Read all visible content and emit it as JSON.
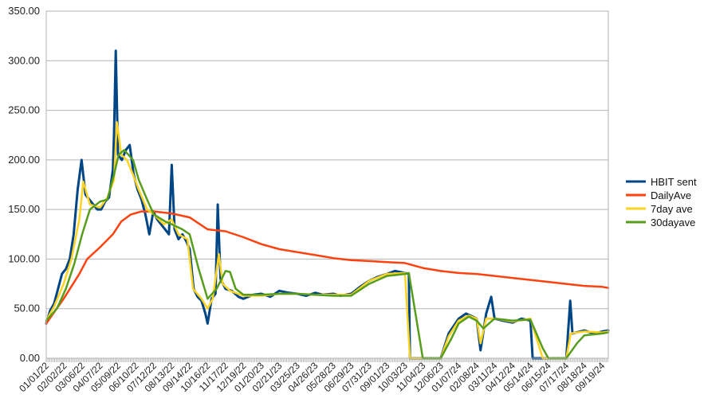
{
  "chart_data": {
    "type": "line",
    "title": "",
    "xlabel": "",
    "ylabel": "",
    "ylim": [
      0,
      350
    ],
    "y_ticks": [
      "0.00",
      "50.00",
      "100.00",
      "150.00",
      "200.00",
      "250.00",
      "300.00",
      "350.00"
    ],
    "x_tick_labels": [
      "01/01/22",
      "02/02/22",
      "03/06/22",
      "04/07/22",
      "05/09/22",
      "06/10/22",
      "07/12/22",
      "08/13/22",
      "09/14/22",
      "10/16/22",
      "11/17/22",
      "12/19/22",
      "01/20/23",
      "02/21/23",
      "03/25/23",
      "04/26/23",
      "05/28/23",
      "06/29/23",
      "07/31/23",
      "09/01/23",
      "10/03/23",
      "11/04/23",
      "12/06/23",
      "01/07/24",
      "02/08/24",
      "03/11/24",
      "04/12/24",
      "05/14/24",
      "06/15/24",
      "07/17/24",
      "08/18/24",
      "09/19/24"
    ],
    "grid": true,
    "legend_position": "right",
    "x_unit": "date",
    "x_start": "01/01/22",
    "x_end": "09/30/24",
    "series": [
      {
        "name": "HBIT sent",
        "color": "#004586",
        "points": [
          [
            "01/01/22",
            35
          ],
          [
            "01/08/22",
            48
          ],
          [
            "01/15/22",
            55
          ],
          [
            "01/22/22",
            70
          ],
          [
            "01/29/22",
            85
          ],
          [
            "02/05/22",
            90
          ],
          [
            "02/12/22",
            100
          ],
          [
            "02/19/22",
            125
          ],
          [
            "02/26/22",
            170
          ],
          [
            "03/05/22",
            200
          ],
          [
            "03/12/22",
            165
          ],
          [
            "03/19/22",
            160
          ],
          [
            "03/26/22",
            155
          ],
          [
            "04/02/22",
            150
          ],
          [
            "04/09/22",
            150
          ],
          [
            "04/16/22",
            158
          ],
          [
            "04/23/22",
            162
          ],
          [
            "04/30/22",
            190
          ],
          [
            "05/02/22",
            225
          ],
          [
            "05/05/22",
            310
          ],
          [
            "05/09/22",
            205
          ],
          [
            "05/16/22",
            200
          ],
          [
            "05/23/22",
            210
          ],
          [
            "05/30/22",
            215
          ],
          [
            "06/06/22",
            185
          ],
          [
            "06/13/22",
            170
          ],
          [
            "06/20/22",
            160
          ],
          [
            "06/27/22",
            145
          ],
          [
            "07/04/22",
            125
          ],
          [
            "07/11/22",
            148
          ],
          [
            "07/18/22",
            140
          ],
          [
            "07/25/22",
            135
          ],
          [
            "08/01/22",
            130
          ],
          [
            "08/08/22",
            125
          ],
          [
            "08/13/22",
            195
          ],
          [
            "08/18/22",
            130
          ],
          [
            "08/25/22",
            120
          ],
          [
            "09/01/22",
            125
          ],
          [
            "09/08/22",
            118
          ],
          [
            "09/14/22",
            110
          ],
          [
            "09/21/22",
            70
          ],
          [
            "09/28/22",
            62
          ],
          [
            "10/05/22",
            58
          ],
          [
            "10/12/22",
            45
          ],
          [
            "10/16/22",
            35
          ],
          [
            "10/23/22",
            60
          ],
          [
            "10/30/22",
            65
          ],
          [
            "11/03/22",
            155
          ],
          [
            "11/08/22",
            80
          ],
          [
            "11/17/22",
            70
          ],
          [
            "11/28/22",
            68
          ],
          [
            "12/10/22",
            62
          ],
          [
            "12/19/22",
            60
          ],
          [
            "01/05/23",
            64
          ],
          [
            "01/20/23",
            65
          ],
          [
            "02/05/23",
            62
          ],
          [
            "02/21/23",
            68
          ],
          [
            "03/10/23",
            66
          ],
          [
            "03/25/23",
            65
          ],
          [
            "04/10/23",
            63
          ],
          [
            "04/26/23",
            66
          ],
          [
            "05/10/23",
            64
          ],
          [
            "05/28/23",
            65
          ],
          [
            "06/10/23",
            63
          ],
          [
            "06/29/23",
            65
          ],
          [
            "07/15/23",
            72
          ],
          [
            "07/31/23",
            78
          ],
          [
            "08/15/23",
            82
          ],
          [
            "09/01/23",
            85
          ],
          [
            "09/15/23",
            88
          ],
          [
            "10/03/23",
            86
          ],
          [
            "10/10/23",
            85
          ],
          [
            "10/12/23",
            0
          ],
          [
            "12/06/23",
            0
          ],
          [
            "12/20/23",
            25
          ],
          [
            "01/07/24",
            40
          ],
          [
            "01/20/24",
            45
          ],
          [
            "02/01/24",
            42
          ],
          [
            "02/08/24",
            40
          ],
          [
            "02/15/24",
            8
          ],
          [
            "02/25/24",
            45
          ],
          [
            "03/05/24",
            62
          ],
          [
            "03/11/24",
            40
          ],
          [
            "03/25/24",
            38
          ],
          [
            "04/12/24",
            36
          ],
          [
            "04/28/24",
            40
          ],
          [
            "05/14/24",
            38
          ],
          [
            "05/18/24",
            0
          ],
          [
            "07/17/24",
            0
          ],
          [
            "07/20/24",
            25
          ],
          [
            "07/24/24",
            58
          ],
          [
            "07/28/24",
            25
          ],
          [
            "08/18/24",
            28
          ],
          [
            "09/05/24",
            25
          ],
          [
            "09/19/24",
            27
          ],
          [
            "09/30/24",
            28
          ]
        ]
      },
      {
        "name": "DailyAve",
        "color": "#ff420e",
        "points": [
          [
            "01/01/22",
            35
          ],
          [
            "02/01/22",
            60
          ],
          [
            "03/01/22",
            85
          ],
          [
            "03/15/22",
            100
          ],
          [
            "04/07/22",
            112
          ],
          [
            "04/30/22",
            125
          ],
          [
            "05/15/22",
            138
          ],
          [
            "06/01/22",
            145
          ],
          [
            "06/20/22",
            148
          ],
          [
            "07/12/22",
            148
          ],
          [
            "08/13/22",
            146
          ],
          [
            "09/14/22",
            142
          ],
          [
            "10/16/22",
            130
          ],
          [
            "11/17/22",
            128
          ],
          [
            "12/19/22",
            122
          ],
          [
            "01/20/23",
            115
          ],
          [
            "02/21/23",
            110
          ],
          [
            "03/25/23",
            107
          ],
          [
            "04/26/23",
            104
          ],
          [
            "05/28/23",
            101
          ],
          [
            "06/29/23",
            99
          ],
          [
            "07/31/23",
            98
          ],
          [
            "09/01/23",
            97
          ],
          [
            "10/03/23",
            96
          ],
          [
            "11/04/23",
            91
          ],
          [
            "12/06/23",
            88
          ],
          [
            "01/07/24",
            86
          ],
          [
            "02/08/24",
            85
          ],
          [
            "03/11/24",
            83
          ],
          [
            "04/12/24",
            81
          ],
          [
            "05/14/24",
            79
          ],
          [
            "06/15/24",
            77
          ],
          [
            "07/17/24",
            75
          ],
          [
            "08/18/24",
            73
          ],
          [
            "09/19/24",
            72
          ],
          [
            "09/30/24",
            71
          ]
        ]
      },
      {
        "name": "7day ave",
        "color": "#ffd320",
        "points": [
          [
            "01/01/22",
            38
          ],
          [
            "01/15/22",
            52
          ],
          [
            "02/01/22",
            75
          ],
          [
            "02/15/22",
            100
          ],
          [
            "03/01/22",
            140
          ],
          [
            "03/08/22",
            178
          ],
          [
            "03/20/22",
            155
          ],
          [
            "04/07/22",
            152
          ],
          [
            "04/20/22",
            162
          ],
          [
            "05/02/22",
            180
          ],
          [
            "05/07/22",
            238
          ],
          [
            "05/15/22",
            205
          ],
          [
            "05/25/22",
            200
          ],
          [
            "06/05/22",
            185
          ],
          [
            "06/15/22",
            170
          ],
          [
            "06/30/22",
            150
          ],
          [
            "07/12/22",
            145
          ],
          [
            "07/30/22",
            135
          ],
          [
            "08/13/22",
            140
          ],
          [
            "08/25/22",
            125
          ],
          [
            "09/10/22",
            120
          ],
          [
            "09/20/22",
            70
          ],
          [
            "10/05/22",
            60
          ],
          [
            "10/16/22",
            50
          ],
          [
            "10/25/22",
            60
          ],
          [
            "11/05/22",
            105
          ],
          [
            "11/12/22",
            75
          ],
          [
            "11/25/22",
            68
          ],
          [
            "12/19/22",
            63
          ],
          [
            "01/20/23",
            63
          ],
          [
            "02/21/23",
            65
          ],
          [
            "03/25/23",
            65
          ],
          [
            "04/26/23",
            64
          ],
          [
            "05/28/23",
            64
          ],
          [
            "06/29/23",
            64
          ],
          [
            "07/31/23",
            78
          ],
          [
            "09/01/23",
            85
          ],
          [
            "10/03/23",
            86
          ],
          [
            "10/12/23",
            0
          ],
          [
            "12/06/23",
            0
          ],
          [
            "12/20/23",
            22
          ],
          [
            "01/07/24",
            38
          ],
          [
            "01/25/24",
            43
          ],
          [
            "02/08/24",
            40
          ],
          [
            "02/15/24",
            15
          ],
          [
            "02/25/24",
            40
          ],
          [
            "03/11/24",
            40
          ],
          [
            "04/12/24",
            37
          ],
          [
            "05/14/24",
            40
          ],
          [
            "05/25/24",
            20
          ],
          [
            "06/05/24",
            0
          ],
          [
            "07/17/24",
            0
          ],
          [
            "07/25/24",
            25
          ],
          [
            "08/18/24",
            27
          ],
          [
            "09/19/24",
            26
          ],
          [
            "09/30/24",
            27
          ]
        ]
      },
      {
        "name": "30dayave",
        "color": "#579d1c",
        "points": [
          [
            "01/01/22",
            38
          ],
          [
            "01/20/22",
            50
          ],
          [
            "02/05/22",
            70
          ],
          [
            "02/20/22",
            95
          ],
          [
            "03/06/22",
            125
          ],
          [
            "03/20/22",
            150
          ],
          [
            "04/07/22",
            158
          ],
          [
            "04/20/22",
            160
          ],
          [
            "05/02/22",
            185
          ],
          [
            "05/10/22",
            205
          ],
          [
            "05/20/22",
            210
          ],
          [
            "06/05/22",
            200
          ],
          [
            "06/15/22",
            180
          ],
          [
            "06/30/22",
            160
          ],
          [
            "07/12/22",
            145
          ],
          [
            "08/01/22",
            138
          ],
          [
            "08/13/22",
            135
          ],
          [
            "09/01/22",
            130
          ],
          [
            "09/14/22",
            125
          ],
          [
            "09/30/22",
            90
          ],
          [
            "10/16/22",
            60
          ],
          [
            "11/01/22",
            70
          ],
          [
            "11/17/22",
            88
          ],
          [
            "11/25/22",
            87
          ],
          [
            "12/05/22",
            70
          ],
          [
            "12/19/22",
            64
          ],
          [
            "01/20/23",
            64
          ],
          [
            "02/21/23",
            65
          ],
          [
            "03/25/23",
            65
          ],
          [
            "04/26/23",
            64
          ],
          [
            "05/28/23",
            63
          ],
          [
            "06/29/23",
            63
          ],
          [
            "07/31/23",
            75
          ],
          [
            "09/01/23",
            83
          ],
          [
            "10/03/23",
            85
          ],
          [
            "10/10/23",
            86
          ],
          [
            "11/04/23",
            0
          ],
          [
            "12/06/23",
            0
          ],
          [
            "12/25/23",
            20
          ],
          [
            "01/07/24",
            35
          ],
          [
            "01/25/24",
            42
          ],
          [
            "02/08/24",
            38
          ],
          [
            "02/20/24",
            30
          ],
          [
            "03/11/24",
            40
          ],
          [
            "04/12/24",
            38
          ],
          [
            "05/14/24",
            39
          ],
          [
            "06/05/24",
            10
          ],
          [
            "06/15/24",
            0
          ],
          [
            "07/17/24",
            0
          ],
          [
            "08/05/24",
            15
          ],
          [
            "08/18/24",
            23
          ],
          [
            "09/19/24",
            25
          ],
          [
            "09/30/24",
            26
          ]
        ]
      }
    ]
  }
}
